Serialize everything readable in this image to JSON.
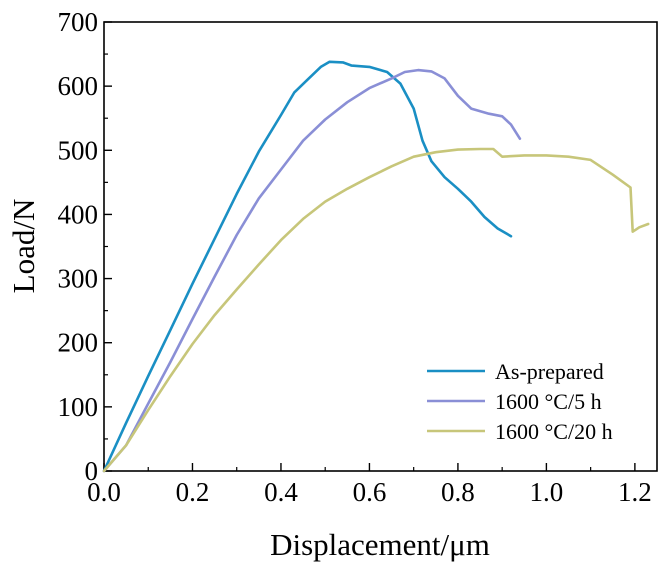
{
  "chart_data": {
    "type": "line",
    "xlabel": "Displacement/μm",
    "ylabel": "Load/N",
    "xlim": [
      0,
      1.25
    ],
    "ylim": [
      0,
      700
    ],
    "xticks": [
      0.0,
      0.2,
      0.4,
      0.6,
      0.8,
      1.0,
      1.2
    ],
    "xtick_labels": [
      "0.0",
      "0.2",
      "0.4",
      "0.6",
      "0.8",
      "1.0",
      "1.2"
    ],
    "yticks": [
      0,
      100,
      200,
      300,
      400,
      500,
      600,
      700
    ],
    "ytick_labels": [
      "0",
      "100",
      "200",
      "300",
      "400",
      "500",
      "600",
      "700"
    ],
    "grid": false,
    "legend_position": "bottom-right",
    "series": [
      {
        "name": "As-prepared",
        "color": "#1a8fc4",
        "points": [
          [
            0.0,
            0
          ],
          [
            0.05,
            75
          ],
          [
            0.1,
            148
          ],
          [
            0.15,
            220
          ],
          [
            0.2,
            292
          ],
          [
            0.25,
            362
          ],
          [
            0.3,
            432
          ],
          [
            0.35,
            498
          ],
          [
            0.4,
            555
          ],
          [
            0.43,
            590
          ],
          [
            0.46,
            610
          ],
          [
            0.49,
            630
          ],
          [
            0.51,
            638
          ],
          [
            0.54,
            637
          ],
          [
            0.56,
            632
          ],
          [
            0.6,
            630
          ],
          [
            0.64,
            622
          ],
          [
            0.67,
            604
          ],
          [
            0.7,
            565
          ],
          [
            0.72,
            515
          ],
          [
            0.74,
            483
          ],
          [
            0.77,
            458
          ],
          [
            0.8,
            440
          ],
          [
            0.83,
            420
          ],
          [
            0.86,
            396
          ],
          [
            0.89,
            378
          ],
          [
            0.92,
            366
          ]
        ]
      },
      {
        "name": "1600 °C/5 h",
        "color": "#8a8fd6",
        "points": [
          [
            0.0,
            0
          ],
          [
            0.05,
            40
          ],
          [
            0.1,
            105
          ],
          [
            0.15,
            170
          ],
          [
            0.2,
            237
          ],
          [
            0.25,
            303
          ],
          [
            0.3,
            368
          ],
          [
            0.35,
            425
          ],
          [
            0.4,
            470
          ],
          [
            0.45,
            515
          ],
          [
            0.5,
            548
          ],
          [
            0.55,
            575
          ],
          [
            0.6,
            597
          ],
          [
            0.65,
            612
          ],
          [
            0.68,
            622
          ],
          [
            0.71,
            625
          ],
          [
            0.74,
            623
          ],
          [
            0.77,
            612
          ],
          [
            0.8,
            585
          ],
          [
            0.83,
            565
          ],
          [
            0.87,
            557
          ],
          [
            0.9,
            553
          ],
          [
            0.92,
            540
          ],
          [
            0.94,
            518
          ]
        ]
      },
      {
        "name": "1600 °C/20 h",
        "color": "#c7c67a",
        "points": [
          [
            0.0,
            0
          ],
          [
            0.05,
            40
          ],
          [
            0.1,
            95
          ],
          [
            0.15,
            148
          ],
          [
            0.2,
            198
          ],
          [
            0.25,
            243
          ],
          [
            0.3,
            283
          ],
          [
            0.35,
            322
          ],
          [
            0.4,
            360
          ],
          [
            0.45,
            393
          ],
          [
            0.5,
            420
          ],
          [
            0.55,
            440
          ],
          [
            0.6,
            458
          ],
          [
            0.65,
            475
          ],
          [
            0.7,
            490
          ],
          [
            0.75,
            497
          ],
          [
            0.8,
            501
          ],
          [
            0.85,
            502
          ],
          [
            0.88,
            502
          ],
          [
            0.9,
            490
          ],
          [
            0.95,
            492
          ],
          [
            1.0,
            492
          ],
          [
            1.05,
            490
          ],
          [
            1.1,
            485
          ],
          [
            1.15,
            462
          ],
          [
            1.19,
            442
          ],
          [
            1.195,
            373
          ],
          [
            1.21,
            380
          ],
          [
            1.23,
            385
          ]
        ]
      }
    ]
  }
}
